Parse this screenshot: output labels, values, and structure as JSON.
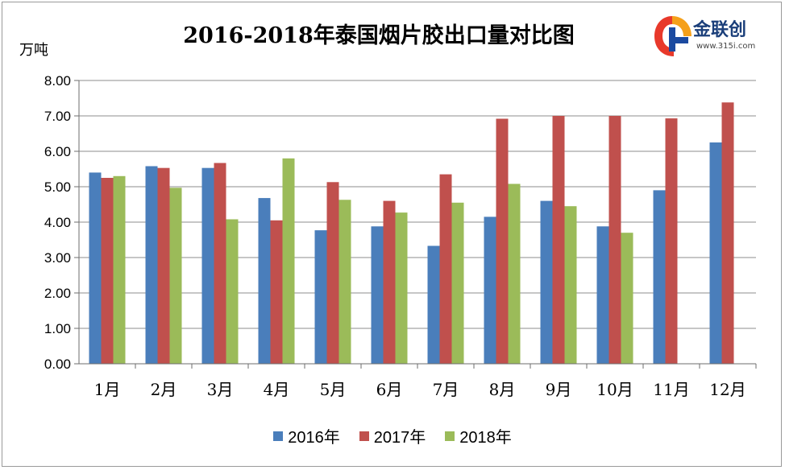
{
  "chart_data": {
    "type": "bar",
    "title": "2016-2018年泰国烟片胶出口量对比图",
    "ylabel": "万吨",
    "xlabel": "",
    "ylim": [
      0,
      8
    ],
    "yticks": [
      "0.00",
      "1.00",
      "2.00",
      "3.00",
      "4.00",
      "5.00",
      "6.00",
      "7.00",
      "8.00"
    ],
    "categories": [
      "1月",
      "2月",
      "3月",
      "4月",
      "5月",
      "6月",
      "7月",
      "8月",
      "9月",
      "10月",
      "11月",
      "12月"
    ],
    "series": [
      {
        "name": "2016年",
        "color": "#4a7ebb",
        "values": [
          5.4,
          5.58,
          5.53,
          4.68,
          3.77,
          3.88,
          3.33,
          4.15,
          4.6,
          3.88,
          4.9,
          6.25
        ]
      },
      {
        "name": "2017年",
        "color": "#c0504d",
        "values": [
          5.25,
          5.53,
          5.67,
          4.05,
          5.13,
          4.6,
          5.35,
          6.92,
          7.0,
          7.0,
          6.93,
          7.38
        ]
      },
      {
        "name": "2018年",
        "color": "#9bbb59",
        "values": [
          5.3,
          4.97,
          4.08,
          5.8,
          4.63,
          4.27,
          4.55,
          5.08,
          4.45,
          3.7,
          null,
          null
        ]
      }
    ],
    "grid": true,
    "legend": "bottom"
  },
  "logo": {
    "name": "金联创",
    "url": "www.315i.com"
  }
}
